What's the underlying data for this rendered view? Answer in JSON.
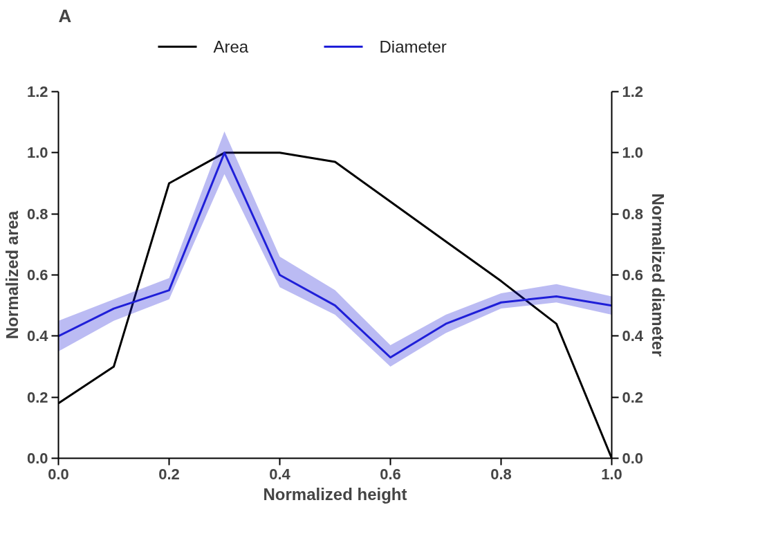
{
  "chart_data": {
    "type": "line",
    "xlabel": "Normalized height",
    "ylabel": "Normalized area",
    "y2label": "Normalized diameter",
    "annotations": [
      "A"
    ],
    "x": [
      0,
      0.1,
      0.2,
      0.3,
      0.4,
      0.5,
      0.6,
      0.7,
      0.8,
      0.9,
      1.0
    ],
    "series": [
      {
        "name": "Area",
        "color": "#000000",
        "values": [
          0.18,
          0.3,
          0.9,
          1.0,
          1.0,
          0.97,
          0.84,
          0.71,
          0.58,
          0.44,
          0.0
        ]
      },
      {
        "name": "Diameter",
        "color": "#1f1fd8",
        "axis": "y2",
        "values": [
          0.4,
          0.49,
          0.55,
          1.0,
          0.6,
          0.5,
          0.33,
          0.44,
          0.51,
          0.53,
          0.5
        ],
        "lower": [
          0.35,
          0.45,
          0.52,
          0.93,
          0.56,
          0.47,
          0.3,
          0.41,
          0.49,
          0.51,
          0.47
        ],
        "upper": [
          0.45,
          0.52,
          0.59,
          1.07,
          0.66,
          0.55,
          0.37,
          0.47,
          0.54,
          0.57,
          0.53
        ]
      }
    ],
    "xlim": [
      0,
      1.0
    ],
    "xticks": [
      {
        "value": 0,
        "label": "0.0"
      },
      0.2,
      0.4,
      0.6,
      0.8,
      {
        "value": 1.0,
        "label": "1.0"
      }
    ],
    "ylim": [
      0,
      1.2
    ],
    "yticks": [
      {
        "value": 0,
        "label": "0.0"
      },
      0.2,
      0.4,
      0.6,
      0.8,
      {
        "value": 1.0,
        "label": "1.0"
      },
      1.2
    ],
    "y2lim": [
      0,
      1.2
    ],
    "y2ticks": [
      {
        "value": 0,
        "label": "0.0"
      },
      0.2,
      0.4,
      0.6,
      0.8,
      {
        "value": 1.0,
        "label": "1.0"
      },
      1.2
    ],
    "legend": "top",
    "grid": false,
    "marker": "none",
    "line_style": "solid"
  }
}
